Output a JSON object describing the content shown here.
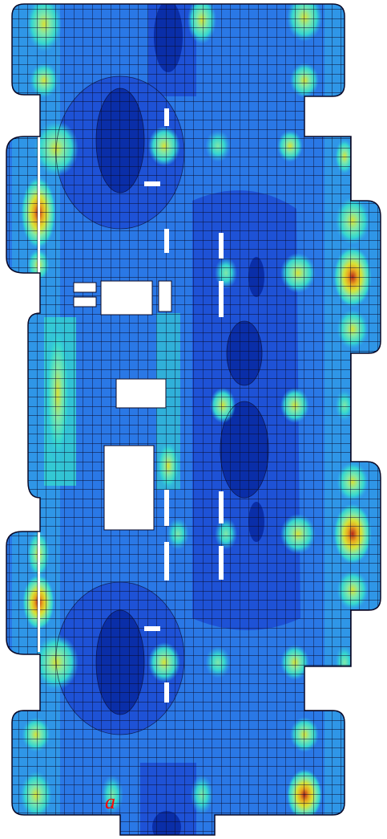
{
  "figure": {
    "subfigure_mark": "a"
  },
  "colors": {
    "background": "#ffffff",
    "mesh_lines": "#0a0a28",
    "opening_fill": "#ffffff",
    "mark_color": "#ff0000",
    "contour_scale": [
      "#0a2ea8",
      "#1e52d6",
      "#2a78e6",
      "#33aee8",
      "#35d6d0",
      "#7fe8a8",
      "#d8e236",
      "#e8a820",
      "#b8281c"
    ]
  }
}
